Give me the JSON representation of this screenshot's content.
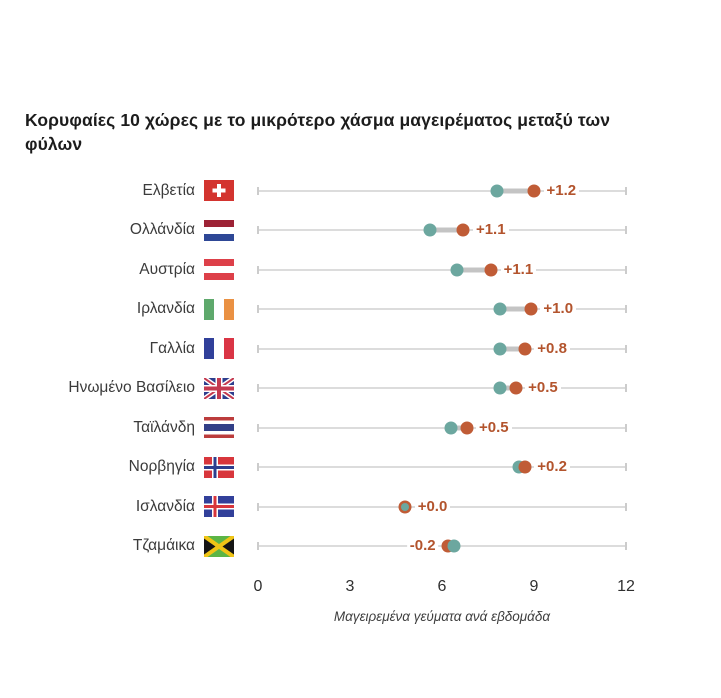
{
  "title": "Κορυφαίες 10 χώρες με το μικρότερο χάσμα μαγειρέματος μεταξύ των φύλων",
  "chart_data": {
    "type": "scatter",
    "variant": "dumbbell",
    "xlabel": "Μαγειρεμένα γεύματα ανά εβδομάδα",
    "xlim": [
      0,
      12
    ],
    "x_ticks": [
      0,
      3,
      6,
      9,
      12
    ],
    "grid": false,
    "legend": "none",
    "rows": [
      {
        "country": "Ελβετία",
        "flag": "switzerland",
        "teal": 7.8,
        "orange": 9.0,
        "gap_label": "+1.2"
      },
      {
        "country": "Ολλάνδία",
        "flag": "netherlands",
        "teal": 5.6,
        "orange": 6.7,
        "gap_label": "+1.1"
      },
      {
        "country": "Αυστρία",
        "flag": "austria",
        "teal": 6.5,
        "orange": 7.6,
        "gap_label": "+1.1"
      },
      {
        "country": "Ιρλανδία",
        "flag": "ireland",
        "teal": 7.9,
        "orange": 8.9,
        "gap_label": "+1.0"
      },
      {
        "country": "Γαλλία",
        "flag": "france",
        "teal": 7.9,
        "orange": 8.7,
        "gap_label": "+0.8"
      },
      {
        "country": "Ηνωμένο Βασίλειο",
        "flag": "united-kingdom",
        "teal": 7.9,
        "orange": 8.4,
        "gap_label": "+0.5"
      },
      {
        "country": "Ταϊλάνδη",
        "flag": "thailand",
        "teal": 6.3,
        "orange": 6.8,
        "gap_label": "+0.5"
      },
      {
        "country": "Νορβηγία",
        "flag": "norway",
        "teal": 8.5,
        "orange": 8.7,
        "gap_label": "+0.2"
      },
      {
        "country": "Ισλανδία",
        "flag": "iceland",
        "teal": 4.8,
        "orange": 4.8,
        "gap_label": "+0.0"
      },
      {
        "country": "Τζαμάικα",
        "flag": "jamaica",
        "teal": 6.4,
        "orange": 6.2,
        "gap_label": "-0.2"
      }
    ]
  },
  "colors": {
    "background": "#ffffff",
    "title_text": "#1c1c1c",
    "country_text": "#3b3b3b",
    "tick_text": "#2f2f2f",
    "axis_label_text": "#3f3f3f",
    "baseline": "#dcdcdc",
    "end_cap": "#cccccc",
    "connector": "#c4c4c4",
    "teal_dot": "#6ca79f",
    "orange_dot": "#c05c36",
    "gap_label_text": "#b3542d"
  }
}
